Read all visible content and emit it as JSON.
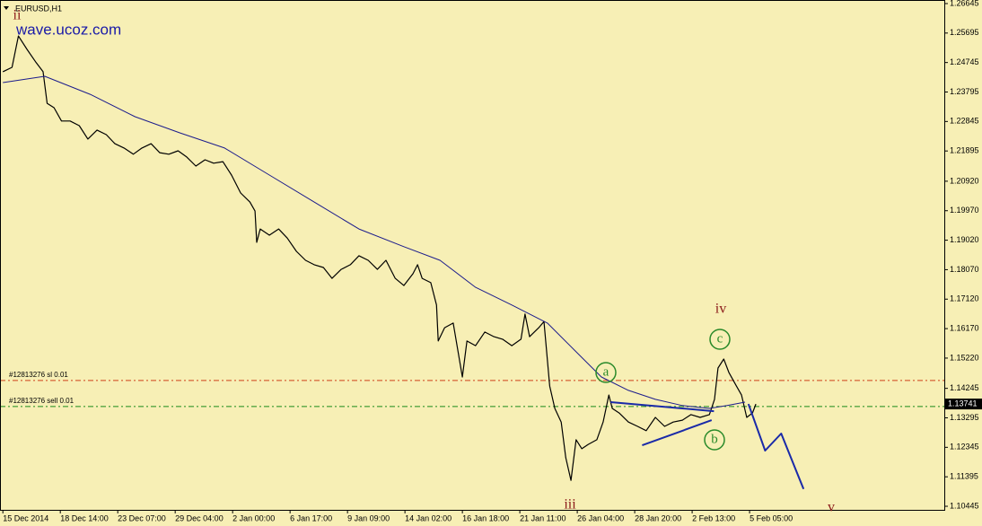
{
  "chart_data": {
    "type": "line",
    "title": "EURUSD,H1",
    "watermark": "wave.ucoz.com",
    "xlim": [
      -0.05,
      16.39
    ],
    "ylim": [
      1.1033,
      1.2676
    ],
    "xticks": [
      {
        "value": 0,
        "label": "15 Dec 2014"
      },
      {
        "value": 1,
        "label": "18 Dec 14:00"
      },
      {
        "value": 2,
        "label": "23 Dec 07:00"
      },
      {
        "value": 3,
        "label": "29 Dec 04:00"
      },
      {
        "value": 4,
        "label": "2 Jan 00:00"
      },
      {
        "value": 5,
        "label": "6 Jan 17:00"
      },
      {
        "value": 6,
        "label": "9 Jan 09:00"
      },
      {
        "value": 7,
        "label": "14 Jan 02:00"
      },
      {
        "value": 8,
        "label": "16 Jan 18:00"
      },
      {
        "value": 9,
        "label": "21 Jan 11:00"
      },
      {
        "value": 10,
        "label": "26 Jan 04:00"
      },
      {
        "value": 11,
        "label": "28 Jan 20:00"
      },
      {
        "value": 12,
        "label": "2 Feb 13:00"
      },
      {
        "value": 13,
        "label": "5 Feb 05:00"
      }
    ],
    "yticks": [
      1.26645,
      1.25695,
      1.24745,
      1.23795,
      1.22845,
      1.21895,
      {
        "value": 1.2092,
        "label": "1.20920"
      },
      {
        "value": 1.1997,
        "label": "1.19970"
      },
      {
        "value": 1.1902,
        "label": "1.19020"
      },
      {
        "value": 1.1807,
        "label": "1.18070"
      },
      {
        "value": 1.1712,
        "label": "1.17120"
      },
      {
        "value": 1.1617,
        "label": "1.16170"
      },
      {
        "value": 1.1522,
        "label": "1.15220"
      },
      1.14245,
      1.13295,
      1.12345,
      1.11395,
      1.10445
    ],
    "current_price": 1.13741,
    "levels": [
      {
        "label": "#12813276 sl 0.01",
        "value": 1.145,
        "color": "#d0401a"
      },
      {
        "label": "#12813276 sell 0.01",
        "value": 1.1366,
        "color": "#1a8a1a"
      }
    ],
    "series": [
      {
        "color": "#000000",
        "width": 1.2,
        "x": [
          0,
          0.16,
          0.27,
          0.42,
          0.58,
          0.7,
          0.77,
          0.89,
          1.02,
          1.17,
          1.33,
          1.48,
          1.64,
          1.8,
          1.95,
          2.11,
          2.27,
          2.42,
          2.58,
          2.73,
          2.89,
          3.05,
          3.2,
          3.36,
          3.52,
          3.67,
          3.83,
          3.98,
          4.14,
          4.3,
          4.39,
          4.42,
          4.48,
          4.64,
          4.8,
          4.95,
          5.11,
          5.27,
          5.42,
          5.58,
          5.73,
          5.89,
          6.05,
          6.2,
          6.36,
          6.52,
          6.67,
          6.83,
          6.98,
          7.14,
          7.22,
          7.3,
          7.45,
          7.55,
          7.58,
          7.69,
          7.84,
          8.0,
          8.08,
          8.23,
          8.39,
          8.55,
          8.7,
          8.86,
          9.02,
          9.09,
          9.17,
          9.33,
          9.42,
          9.52,
          9.61,
          9.72,
          9.8,
          9.89,
          9.98,
          10.08,
          10.19,
          10.34,
          10.45,
          10.55,
          10.61,
          10.73,
          10.89,
          11.05,
          11.2,
          11.36,
          11.52,
          11.67,
          11.83,
          11.98,
          12.14,
          12.3,
          12.39,
          12.45,
          12.55,
          12.64,
          12.77,
          12.86,
          12.95,
          13.05,
          13.11
        ],
        "values": [
          1.2445,
          1.2459,
          1.256,
          1.2517,
          1.2474,
          1.2445,
          1.2343,
          1.2329,
          1.2286,
          1.2286,
          1.2271,
          1.2228,
          1.2257,
          1.2242,
          1.2213,
          1.2199,
          1.2179,
          1.2199,
          1.2213,
          1.2184,
          1.2179,
          1.219,
          1.217,
          1.2141,
          1.2161,
          1.215,
          1.2155,
          1.2112,
          1.2054,
          1.2025,
          1.1996,
          1.1895,
          1.1938,
          1.1918,
          1.1938,
          1.1909,
          1.1866,
          1.1837,
          1.1823,
          1.1814,
          1.1779,
          1.1808,
          1.1823,
          1.1852,
          1.1837,
          1.1808,
          1.1837,
          1.1779,
          1.1756,
          1.1794,
          1.1823,
          1.1779,
          1.1765,
          1.1693,
          1.1577,
          1.162,
          1.1635,
          1.1461,
          1.1577,
          1.1562,
          1.1606,
          1.1591,
          1.1583,
          1.1562,
          1.1583,
          1.1664,
          1.1591,
          1.162,
          1.164,
          1.1432,
          1.136,
          1.1316,
          1.1201,
          1.1128,
          1.1259,
          1.123,
          1.1244,
          1.1259,
          1.1316,
          1.1403,
          1.136,
          1.1345,
          1.1316,
          1.1302,
          1.1288,
          1.1331,
          1.1302,
          1.1316,
          1.1322,
          1.134,
          1.1331,
          1.134,
          1.1389,
          1.149,
          1.1519,
          1.1476,
          1.1432,
          1.1403,
          1.1331,
          1.1345,
          1.1374
        ]
      },
      {
        "color": "#1c1c8c",
        "width": 1,
        "x": [
          0,
          0.73,
          1.52,
          2.3,
          3.08,
          3.86,
          4.64,
          5.42,
          6.2,
          6.98,
          7.61,
          8.23,
          8.86,
          9.48,
          9.95,
          10.42,
          10.89,
          11.36,
          11.83,
          12.3,
          12.61,
          12.92
        ],
        "values": [
          1.241,
          1.243,
          1.2372,
          1.23,
          1.2248,
          1.2199,
          1.2112,
          1.2025,
          1.1938,
          1.1881,
          1.1837,
          1.175,
          1.1693,
          1.1635,
          1.1548,
          1.1461,
          1.1418,
          1.1389,
          1.1369,
          1.136,
          1.1369,
          1.138
        ]
      },
      {
        "color": "#1a2aa8",
        "width": 2,
        "x": [
          10.58,
          12.38
        ],
        "values": [
          1.138,
          1.1351
        ]
      },
      {
        "color": "#1a2aa8",
        "width": 2,
        "x": [
          11.13,
          12.34
        ],
        "values": [
          1.1241,
          1.1322
        ]
      },
      {
        "color": "#1a2aa8",
        "width": 2,
        "x": [
          12.98,
          13.27,
          13.55,
          13.94
        ],
        "values": [
          1.1374,
          1.1224,
          1.1279,
          1.11
        ]
      }
    ],
    "annotations": [
      {
        "text": "ii",
        "circled": false
      },
      {
        "text": "iii",
        "circled": false
      },
      {
        "text": "iv",
        "circled": false
      },
      {
        "text": "v",
        "circled": false
      },
      {
        "text": "a",
        "circled": true
      },
      {
        "text": "b",
        "circled": true
      },
      {
        "text": "c",
        "circled": true
      }
    ]
  }
}
